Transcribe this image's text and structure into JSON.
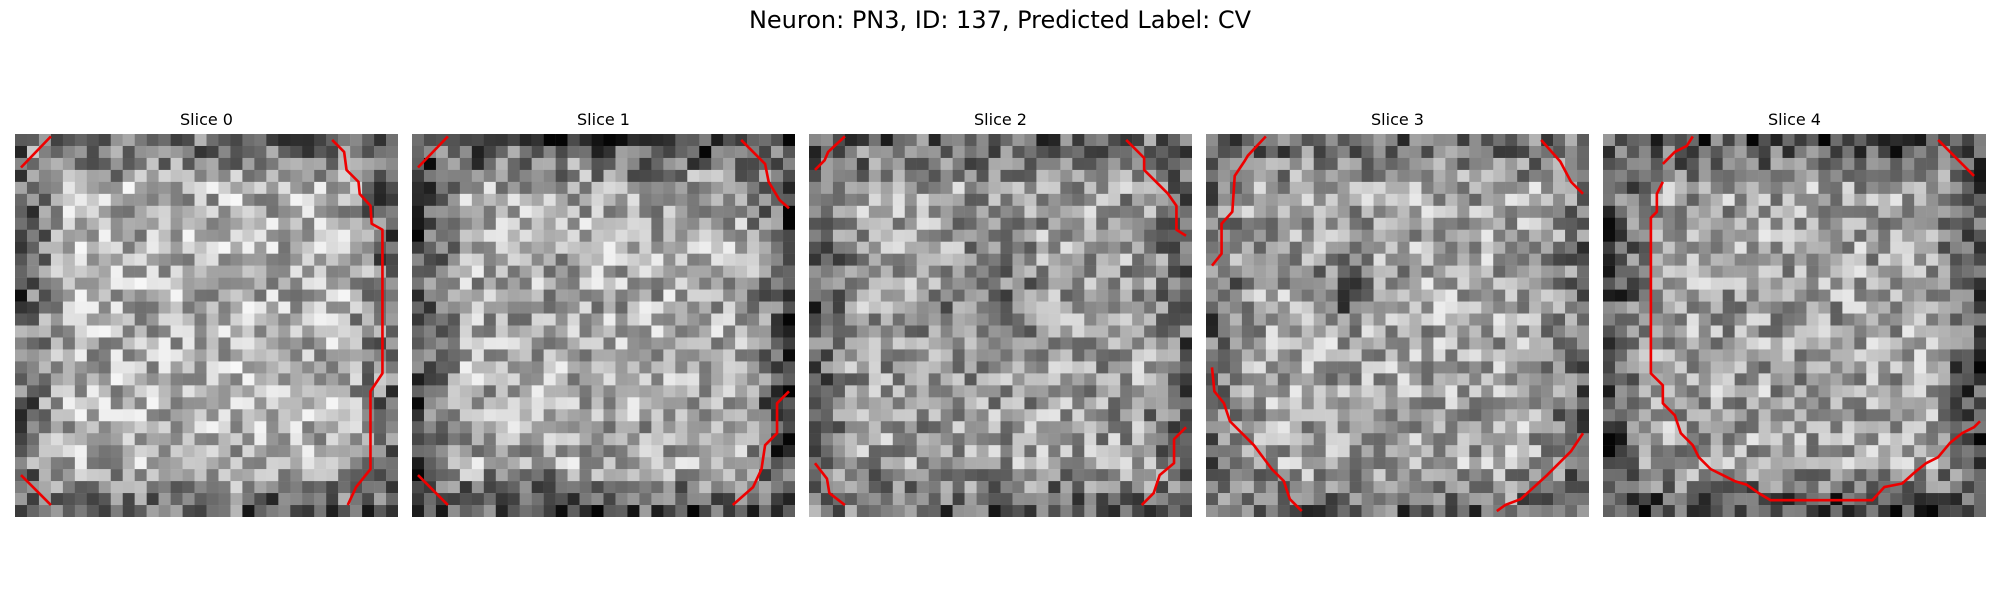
{
  "figure": {
    "title": "Neuron: PN3, ID: 137, Predicted Label: CV"
  },
  "slices": [
    {
      "title": "Slice 0"
    },
    {
      "title": "Slice 1"
    },
    {
      "title": "Slice 2"
    },
    {
      "title": "Slice 3"
    },
    {
      "title": "Slice 4"
    }
  ],
  "colors": {
    "contour": "#ee0000",
    "background": "#ffffff"
  },
  "image": {
    "colormap": "grayscale",
    "pixel_grid": "32x32"
  }
}
